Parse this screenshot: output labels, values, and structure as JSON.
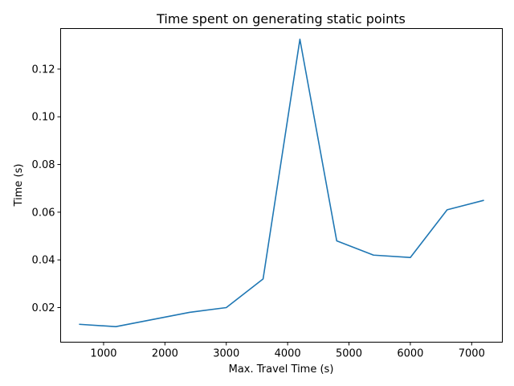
{
  "chart_data": {
    "type": "line",
    "title": "Time spent on generating static points",
    "xlabel": "Max. Travel Time (s)",
    "ylabel": "Time (s)",
    "xlim": [
      300,
      7500
    ],
    "ylim": [
      0.0055,
      0.137
    ],
    "xticks": [
      1000,
      2000,
      3000,
      4000,
      5000,
      6000,
      7000
    ],
    "xtick_labels": [
      "1000",
      "2000",
      "3000",
      "4000",
      "5000",
      "6000",
      "7000"
    ],
    "yticks": [
      0.02,
      0.04,
      0.06,
      0.08,
      0.1,
      0.12
    ],
    "ytick_labels": [
      "0.02",
      "0.04",
      "0.06",
      "0.08",
      "0.10",
      "0.12"
    ],
    "grid": false,
    "series": [
      {
        "color": "#1f77b4",
        "x": [
          600,
          1200,
          1800,
          2400,
          3000,
          3600,
          4200,
          4800,
          5400,
          6000,
          6600,
          7200
        ],
        "y": [
          0.013,
          0.012,
          0.015,
          0.018,
          0.02,
          0.032,
          0.1325,
          0.048,
          0.042,
          0.041,
          0.061,
          0.065
        ]
      }
    ]
  }
}
